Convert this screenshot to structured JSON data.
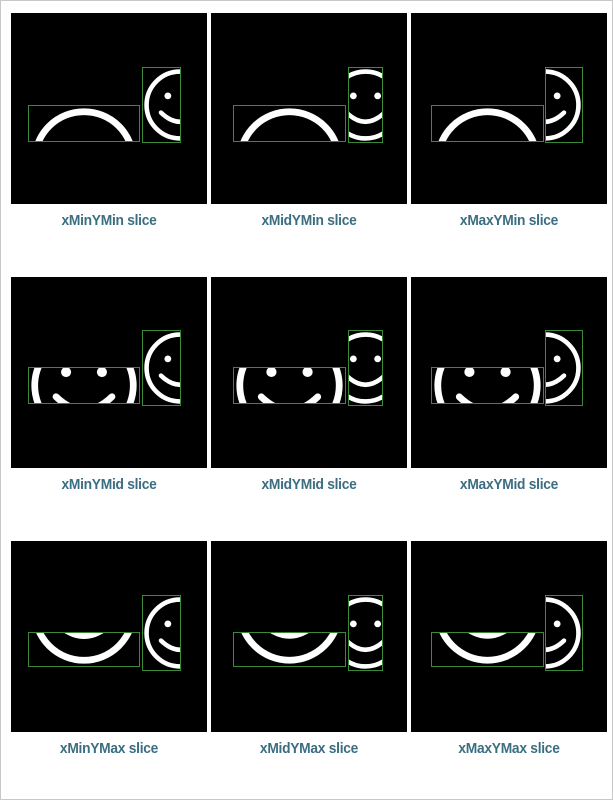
{
  "colors": {
    "panel_bg": "#000000",
    "face_stroke": "#ffffff",
    "box_stroke": "#3a8a3a",
    "caption": "#3c6e82"
  },
  "panels": [
    {
      "caption": "xMinYMin slice",
      "align_x": "min",
      "align_y": "min"
    },
    {
      "caption": "xMidYMin slice",
      "align_x": "mid",
      "align_y": "min"
    },
    {
      "caption": "xMaxYMin slice",
      "align_x": "max",
      "align_y": "min"
    },
    {
      "caption": "xMinYMid slice",
      "align_x": "min",
      "align_y": "mid"
    },
    {
      "caption": "xMidYMid slice",
      "align_x": "mid",
      "align_y": "mid"
    },
    {
      "caption": "xMaxYMid slice",
      "align_x": "max",
      "align_y": "mid"
    },
    {
      "caption": "xMinYMax slice",
      "align_x": "min",
      "align_y": "max"
    },
    {
      "caption": "xMidYMax slice",
      "align_x": "mid",
      "align_y": "max"
    },
    {
      "caption": "xMaxYMax slice",
      "align_x": "max",
      "align_y": "max"
    }
  ]
}
